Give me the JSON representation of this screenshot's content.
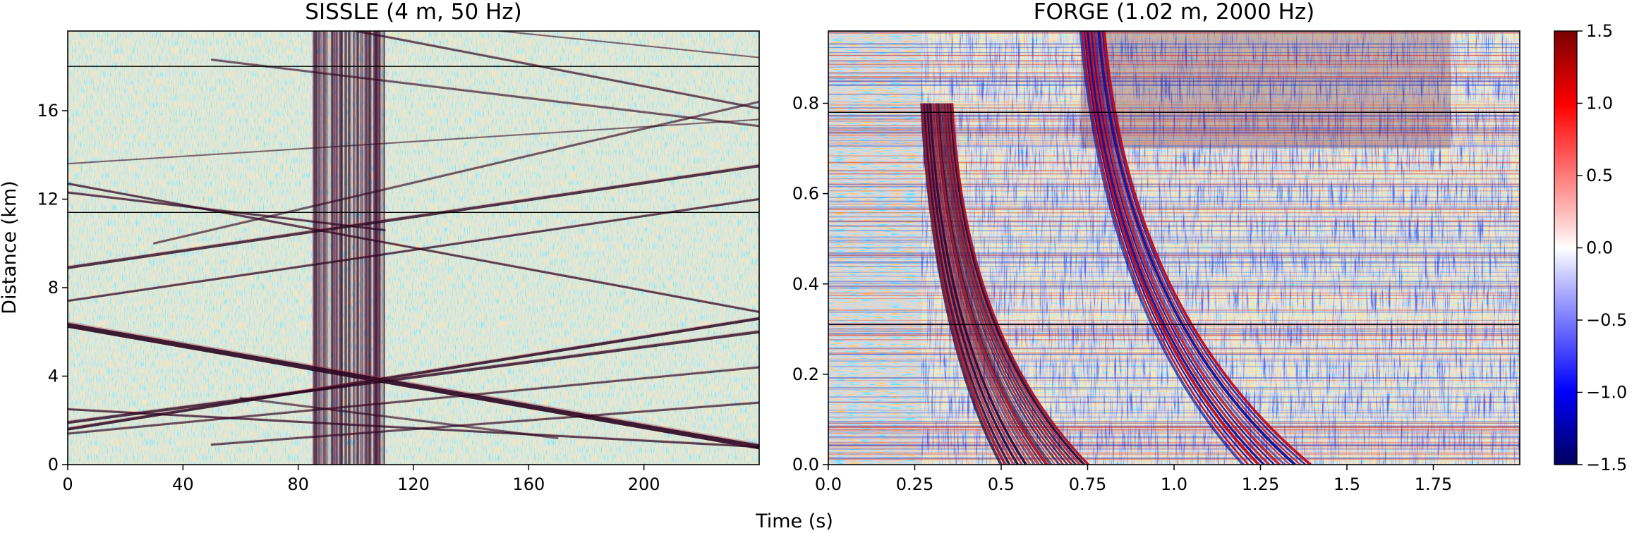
{
  "figure": {
    "shared_xlabel": "Time (s)"
  },
  "colors": {
    "negative": "#0a0a5a",
    "neutral": "#ffffff",
    "positive": "#7a0000",
    "frame": "#000000"
  },
  "chart_data": [
    {
      "type": "heatmap",
      "title": "SISSLE (4 m, 50 Hz)",
      "xlabel": "Time (s)",
      "ylabel": "Distance (km)",
      "xlim": [
        0,
        240
      ],
      "ylim": [
        0,
        19.6
      ],
      "xticks": [
        0,
        40,
        80,
        120,
        160,
        200
      ],
      "xtick_labels": [
        "0",
        "40",
        "80",
        "120",
        "160",
        "200"
      ],
      "yticks": [
        0,
        4,
        8,
        12,
        16
      ],
      "ytick_labels": [
        "0",
        "4",
        "8",
        "12",
        "16"
      ],
      "vertical_noise_band": {
        "x_start": 85,
        "x_end": 110
      },
      "dead_channels_km": [
        18.0,
        11.4
      ],
      "traces": [
        {
          "from": [
            0,
            6.3
          ],
          "to": [
            240,
            0.8
          ],
          "strength": 1.0,
          "width": 7
        },
        {
          "from": [
            0,
            1.6
          ],
          "to": [
            240,
            6.6
          ],
          "strength": 0.9,
          "width": 4
        },
        {
          "from": [
            0,
            1.9
          ],
          "to": [
            240,
            6.0
          ],
          "strength": 0.8,
          "width": 4
        },
        {
          "from": [
            0,
            1.4
          ],
          "to": [
            240,
            4.4
          ],
          "strength": 0.6,
          "width": 3
        },
        {
          "from": [
            0,
            2.5
          ],
          "to": [
            240,
            0.8
          ],
          "strength": 0.7,
          "width": 3
        },
        {
          "from": [
            50,
            0.9
          ],
          "to": [
            240,
            2.8
          ],
          "strength": 0.6,
          "width": 3
        },
        {
          "from": [
            60,
            3.0
          ],
          "to": [
            170,
            1.2
          ],
          "strength": 0.5,
          "width": 3
        },
        {
          "from": [
            0,
            7.4
          ],
          "to": [
            240,
            12.0
          ],
          "strength": 0.7,
          "width": 3
        },
        {
          "from": [
            0,
            8.9
          ],
          "to": [
            240,
            13.5
          ],
          "strength": 0.8,
          "width": 4
        },
        {
          "from": [
            0,
            12.3
          ],
          "to": [
            110,
            10.6
          ],
          "strength": 0.7,
          "width": 3
        },
        {
          "from": [
            0,
            12.7
          ],
          "to": [
            240,
            6.9
          ],
          "strength": 0.7,
          "width": 3
        },
        {
          "from": [
            30,
            10.0
          ],
          "to": [
            240,
            16.4
          ],
          "strength": 0.5,
          "width": 3
        },
        {
          "from": [
            0,
            13.6
          ],
          "to": [
            240,
            15.6
          ],
          "strength": 0.4,
          "width": 2
        },
        {
          "from": [
            100,
            19.6
          ],
          "to": [
            240,
            16.1
          ],
          "strength": 0.6,
          "width": 3
        },
        {
          "from": [
            50,
            18.3
          ],
          "to": [
            240,
            15.3
          ],
          "strength": 0.5,
          "width": 3
        },
        {
          "from": [
            150,
            19.6
          ],
          "to": [
            240,
            18.4
          ],
          "strength": 0.4,
          "width": 2
        }
      ]
    },
    {
      "type": "heatmap",
      "title": "FORGE (1.02 m, 2000 Hz)",
      "xlabel": "Time (s)",
      "ylabel": "",
      "xlim": [
        0,
        2.0
      ],
      "ylim": [
        0,
        0.96
      ],
      "xticks": [
        0,
        0.25,
        0.5,
        0.75,
        1.0,
        1.25,
        1.5,
        1.75
      ],
      "xtick_labels": [
        "0.0",
        "0.25",
        "0.5",
        "0.75",
        "1.0",
        "1.25",
        "1.5",
        "1.75"
      ],
      "yticks": [
        0,
        0.2,
        0.4,
        0.6,
        0.8
      ],
      "ytick_labels": [
        "0.0",
        "0.2",
        "0.4",
        "0.6",
        "0.8"
      ],
      "p_wave": {
        "apex_time": 0.5,
        "apex_depth": 0.0,
        "top_time": 0.27,
        "top_depth": 0.8
      },
      "s_wave": {
        "apex_time": 1.2,
        "apex_depth": 0.0,
        "top_time": 0.73,
        "top_depth": 0.96
      },
      "dead_channels": [
        0.78,
        0.31
      ]
    }
  ],
  "colorbar": {
    "min": -1.5,
    "max": 1.5,
    "ticks": [
      1.5,
      1.0,
      0.5,
      0.0,
      -0.5,
      -1.0,
      -1.5
    ],
    "tick_labels": [
      "1.5",
      "1.0",
      "0.5",
      "0.0",
      "−0.5",
      "−1.0",
      "−1.5"
    ]
  }
}
